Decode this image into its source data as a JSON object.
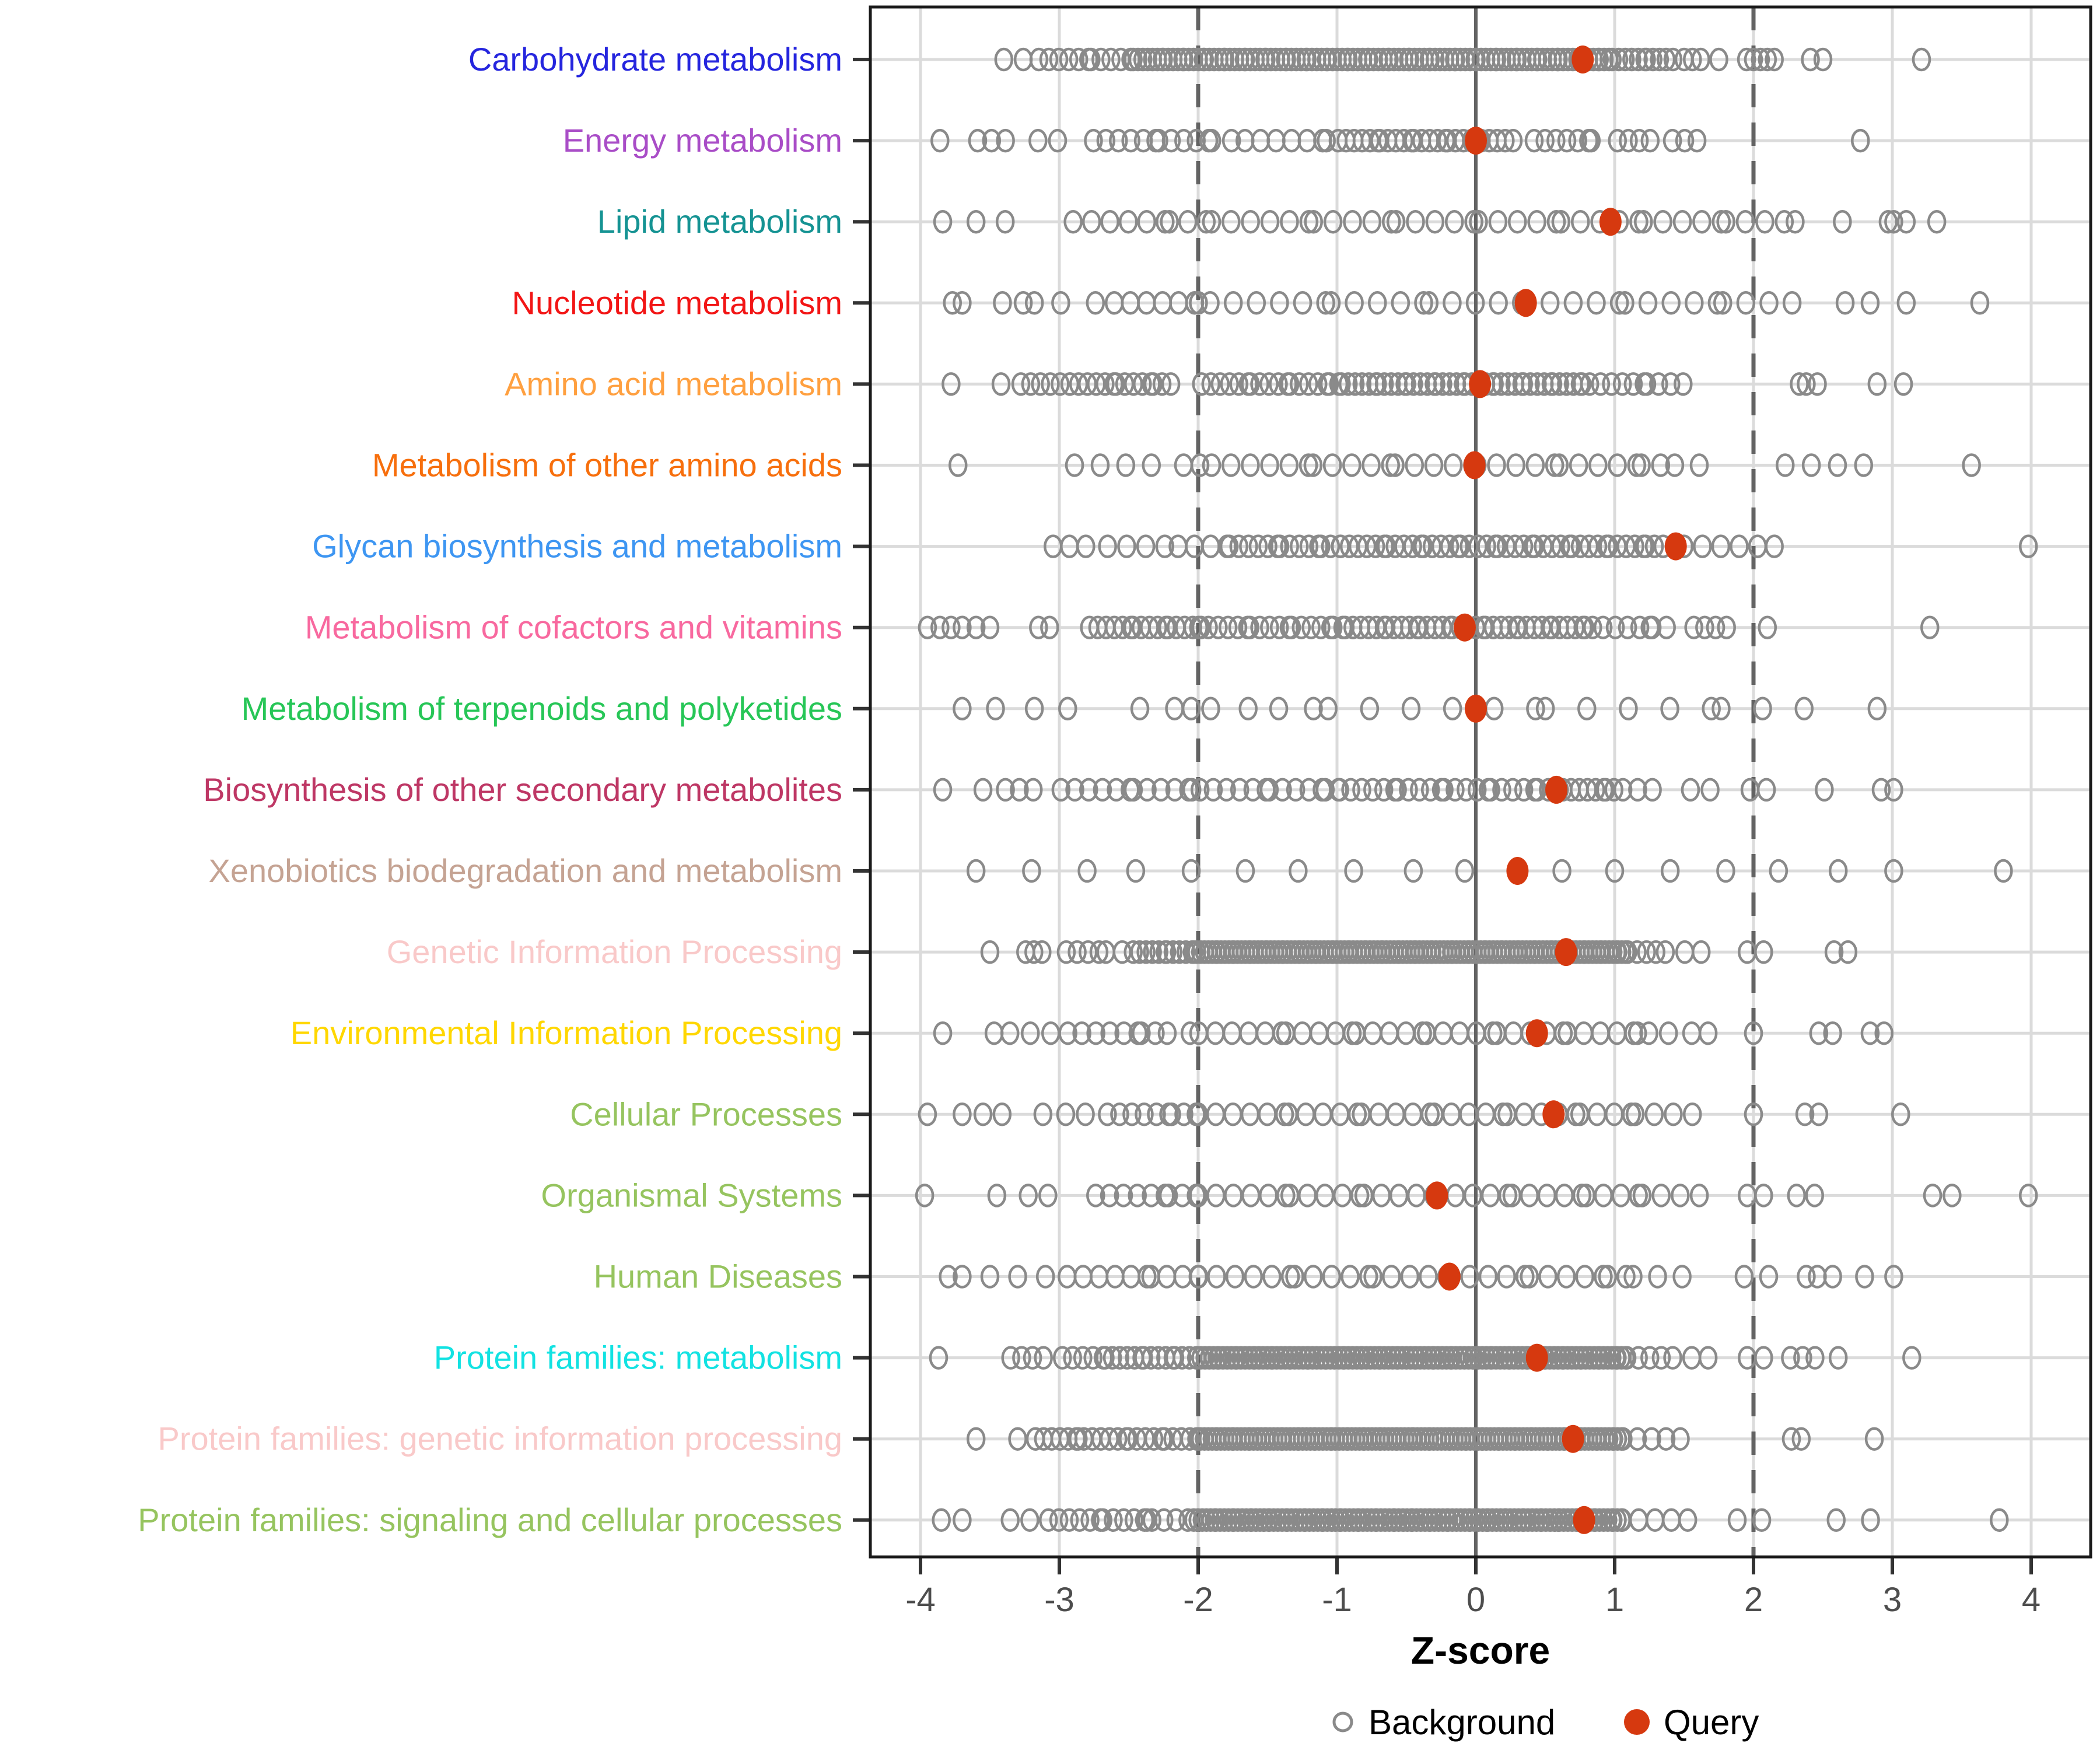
{
  "chart_data": {
    "type": "scatter",
    "title": "",
    "xlabel": "Z-score",
    "x_ticks": [
      -4,
      -3,
      -2,
      -1,
      0,
      1,
      2,
      3,
      4
    ],
    "xlim": [
      -4.4,
      4.45
    ],
    "grid": "on",
    "reference_lines": {
      "solid_at": 0,
      "dashed_at": [
        -2,
        2
      ]
    },
    "legend_position": "bottom",
    "legend": {
      "background": "Background",
      "query": "Query"
    },
    "colors": {
      "query_dot": "#D6390F",
      "background_circle": "#8A8A8A",
      "grid_light": "#DBDBDB",
      "reference_line": "#636363",
      "axis_text": "#4D4D4D",
      "panel_border": "#1A1A1A"
    },
    "categories": [
      {
        "label": "Carbohydrate metabolism",
        "color": "#2525DE",
        "query": 0.77,
        "bg_outliers": [
          -3.4,
          -3.26,
          1.42,
          1.5,
          1.56,
          1.62,
          1.75,
          1.95,
          2.0,
          2.05,
          2.1,
          2.15,
          2.41,
          2.5,
          3.21
        ],
        "bg_clusters": [
          [
            -3.12,
            -2.45,
            12
          ],
          [
            -2.42,
            0.96,
            115
          ],
          [
            1.0,
            1.36,
            10
          ]
        ]
      },
      {
        "label": "Energy metabolism",
        "color": "#A94DC7",
        "query": 0.0,
        "bg_outliers": [
          -3.86,
          -1.76,
          2.77
        ],
        "bg_clusters": [
          [
            -3.55,
            -3.38,
            3
          ],
          [
            -3.1,
            -2.98,
            2
          ],
          [
            -2.72,
            -1.88,
            12
          ],
          [
            -1.62,
            -1.05,
            7
          ],
          [
            -0.97,
            0.25,
            26
          ],
          [
            0.45,
            0.85,
            7
          ],
          [
            1.05,
            1.25,
            4
          ],
          [
            1.45,
            1.6,
            3
          ]
        ]
      },
      {
        "label": "Lipid metabolism",
        "color": "#159393",
        "query": 0.97,
        "bg_outliers": [
          -3.84,
          -3.6,
          -3.39,
          2.3,
          2.64,
          2.97,
          3.01,
          3.1,
          3.32
        ],
        "bg_clusters": [
          [
            -2.85,
            -1.95,
            9
          ],
          [
            -1.85,
            2.2,
            35
          ]
        ]
      },
      {
        "label": "Nucleotide metabolism",
        "color": "#F21515",
        "query": 0.36,
        "bg_outliers": [
          -3.77,
          -3.7,
          -3.41,
          -3.26,
          -3.18,
          -2.99,
          -2.74,
          2.66,
          2.84,
          3.1,
          3.63
        ],
        "bg_clusters": [
          [
            -2.56,
            -1.97,
            7
          ],
          [
            -1.85,
            2.25,
            30
          ]
        ]
      },
      {
        "label": "Amino acid metabolism",
        "color": "#FFA040",
        "query": 0.03,
        "bg_outliers": [
          -3.78,
          -3.42,
          2.33,
          2.38,
          2.46,
          2.89,
          3.08
        ],
        "bg_clusters": [
          [
            -3.25,
            -2.95,
            6
          ],
          [
            -2.9,
            -2.2,
            14
          ],
          [
            -1.95,
            -0.98,
            18
          ],
          [
            -0.95,
            0.78,
            42
          ],
          [
            0.85,
            1.25,
            7
          ],
          [
            1.35,
            1.5,
            3
          ]
        ]
      },
      {
        "label": "Metabolism of other amino acids",
        "color": "#F76F0D",
        "query": -0.01,
        "bg_outliers": [
          -3.73,
          3.57
        ],
        "bg_clusters": [
          [
            -2.82,
            -2.35,
            4
          ],
          [
            -2.06,
            -1.96,
            2
          ],
          [
            -1.85,
            1.35,
            28
          ],
          [
            1.5,
            1.65,
            2
          ],
          [
            2.3,
            2.78,
            4
          ]
        ]
      },
      {
        "label": "Glycan biosynthesis and metabolism",
        "color": "#3E96F2",
        "query": 1.44,
        "bg_outliers": [
          3.98
        ],
        "bg_clusters": [
          [
            -3.0,
            -2.8,
            3
          ],
          [
            -2.6,
            -2.25,
            4
          ],
          [
            -2.1,
            -1.8,
            4
          ],
          [
            -1.75,
            -0.98,
            14
          ],
          [
            -0.95,
            1.35,
            44
          ],
          [
            1.55,
            2.0,
            5
          ],
          [
            2.15,
            2.15,
            1
          ]
        ]
      },
      {
        "label": "Metabolism of cofactors and vitamins",
        "color": "#F8699F",
        "query": -0.08,
        "bg_outliers": [
          -3.95,
          -3.86,
          -3.78,
          -3.7,
          -3.6,
          -3.5,
          -3.15,
          -3.07,
          3.27
        ],
        "bg_clusters": [
          [
            -2.76,
            -2.0,
            16
          ],
          [
            -1.97,
            -0.95,
            18
          ],
          [
            -0.92,
            0.85,
            38
          ],
          [
            0.95,
            1.25,
            5
          ],
          [
            1.3,
            1.4,
            2
          ],
          [
            1.6,
            1.8,
            4
          ],
          [
            2.1,
            2.1,
            1
          ]
        ]
      },
      {
        "label": "Metabolism of terpenoids and polyketides",
        "color": "#27C657",
        "query": 0.0,
        "bg_outliers": [
          -3.7,
          -3.46,
          -3.18,
          -2.94,
          -2.42,
          -2.17,
          -2.05,
          -1.91,
          -1.64,
          -1.42,
          -1.17,
          2.89
        ],
        "bg_clusters": [
          [
            -0.95,
            2.35,
            14
          ]
        ]
      },
      {
        "label": "Biosynthesis of other secondary metabolites",
        "color": "#BE3765",
        "query": 0.58,
        "bg_outliers": [
          -3.84,
          -3.55,
          2.51,
          2.92,
          3.01
        ],
        "bg_clusters": [
          [
            -3.35,
            -3.18,
            3
          ],
          [
            -2.95,
            -2.02,
            12
          ],
          [
            -1.95,
            -0.98,
            13
          ],
          [
            -0.95,
            0.6,
            24
          ],
          [
            0.65,
            1.0,
            8
          ],
          [
            1.1,
            1.28,
            3
          ],
          [
            1.6,
            1.72,
            2
          ],
          [
            2.02,
            2.12,
            2
          ]
        ]
      },
      {
        "label": "Xenobiotics biodegradation and metabolism",
        "color": "#C5A393",
        "query": 0.3,
        "bg_outliers": [
          -3.6,
          -3.2,
          -2.8,
          -2.45,
          -2.05,
          -1.66,
          -1.28,
          -0.88,
          -0.45,
          -0.08,
          0.62,
          1.0,
          1.4,
          1.8,
          2.18,
          2.61,
          3.01,
          3.8
        ],
        "bg_clusters": []
      },
      {
        "label": "Genetic Information Processing",
        "color": "#F9C9C9",
        "query": 0.65,
        "bg_outliers": [
          -3.5,
          2.58,
          2.68
        ],
        "bg_clusters": [
          [
            -3.22,
            -3.12,
            3
          ],
          [
            -2.92,
            -2.72,
            4
          ],
          [
            -2.62,
            -2.52,
            2
          ],
          [
            -2.45,
            -2.02,
            12
          ],
          [
            -2.0,
            1.08,
            130
          ],
          [
            1.12,
            1.35,
            5
          ],
          [
            1.55,
            1.65,
            2
          ],
          [
            2.0,
            2.1,
            2
          ]
        ]
      },
      {
        "label": "Environmental Information Processing",
        "color": "#FFD700",
        "query": 0.44,
        "bg_outliers": [
          -3.84,
          -3.47,
          2.47,
          2.57,
          2.84,
          2.94
        ],
        "bg_clusters": [
          [
            -3.3,
            -3.05,
            3
          ],
          [
            -2.9,
            -2.3,
            8
          ],
          [
            -2.16,
            -2.02,
            2
          ],
          [
            -1.95,
            1.2,
            32
          ],
          [
            1.3,
            1.42,
            2
          ],
          [
            1.6,
            1.7,
            2
          ],
          [
            2.0,
            2.02,
            1
          ]
        ]
      },
      {
        "label": "Cellular Processes",
        "color": "#96C45F",
        "query": 0.56,
        "bg_outliers": [
          -3.95,
          -3.7,
          -3.55,
          2.37,
          2.47,
          3.06
        ],
        "bg_clusters": [
          [
            -3.3,
            -3.05,
            2
          ],
          [
            -2.9,
            -2.78,
            2
          ],
          [
            -2.62,
            -2.02,
            9
          ],
          [
            -1.95,
            1.1,
            30
          ],
          [
            1.2,
            1.55,
            4
          ],
          [
            2.0,
            2.05,
            1
          ]
        ]
      },
      {
        "label": "Organismal Systems",
        "color": "#96C45F",
        "query": -0.28,
        "bg_outliers": [
          -3.97,
          -3.45,
          2.31,
          2.44,
          3.29,
          3.43,
          3.98
        ],
        "bg_clusters": [
          [
            -3.17,
            -3.05,
            2
          ],
          [
            -2.7,
            -2.02,
            9
          ],
          [
            -1.95,
            1.15,
            30
          ],
          [
            1.25,
            1.6,
            4
          ],
          [
            2.0,
            2.1,
            2
          ]
        ]
      },
      {
        "label": "Human Diseases",
        "color": "#96C45F",
        "query": -0.19,
        "bg_outliers": [
          -3.8,
          -3.7,
          -3.5,
          -3.3,
          -3.1,
          2.38,
          2.46,
          2.57,
          2.8,
          3.01
        ],
        "bg_clusters": [
          [
            -2.9,
            -2.02,
            10
          ],
          [
            -1.95,
            1.1,
            28
          ],
          [
            1.2,
            1.5,
            3
          ],
          [
            2.0,
            2.15,
            2
          ]
        ]
      },
      {
        "label": "Protein families: metabolism",
        "color": "#12E2E2",
        "query": 0.44,
        "bg_outliers": [
          -3.87,
          2.61,
          3.14
        ],
        "bg_clusters": [
          [
            -3.32,
            -3.12,
            4
          ],
          [
            -2.95,
            -2.7,
            5
          ],
          [
            -2.65,
            -2.02,
            15
          ],
          [
            -2.0,
            1.08,
            120
          ],
          [
            1.12,
            1.4,
            5
          ],
          [
            1.6,
            1.7,
            2
          ],
          [
            2.0,
            2.1,
            2
          ],
          [
            2.3,
            2.45,
            3
          ]
        ]
      },
      {
        "label": "Protein families: genetic information processing",
        "color": "#F9C9C9",
        "query": 0.7,
        "bg_outliers": [
          -3.6,
          -3.3,
          2.87
        ],
        "bg_clusters": [
          [
            -3.15,
            -2.85,
            7
          ],
          [
            -2.8,
            -2.02,
            16
          ],
          [
            -2.0,
            1.05,
            130
          ],
          [
            1.1,
            1.45,
            5
          ],
          [
            2.3,
            2.36,
            2
          ]
        ]
      },
      {
        "label": "Protein families: signaling and cellular processes",
        "color": "#96C45F",
        "query": 0.78,
        "bg_outliers": [
          -3.85,
          -3.7,
          3.77
        ],
        "bg_clusters": [
          [
            -3.3,
            -3.18,
            2
          ],
          [
            -3.05,
            -2.35,
            12
          ],
          [
            -2.3,
            -2.08,
            4
          ],
          [
            -2.02,
            1.05,
            120
          ],
          [
            1.1,
            1.5,
            5
          ],
          [
            1.95,
            2.1,
            2
          ],
          [
            2.69,
            2.9,
            2
          ]
        ]
      }
    ]
  }
}
